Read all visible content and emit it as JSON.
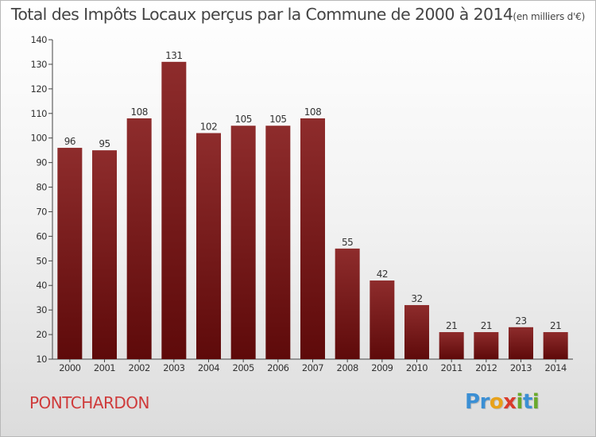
{
  "chart_data": {
    "type": "bar",
    "title": "Total des Impôts Locaux perçus par la Commune de 2000 à 2014",
    "unit_note": "(en milliers d'€)",
    "categories": [
      "2000",
      "2001",
      "2002",
      "2003",
      "2004",
      "2005",
      "2006",
      "2007",
      "2008",
      "2009",
      "2010",
      "2011",
      "2012",
      "2013",
      "2014"
    ],
    "values": [
      96,
      95,
      108,
      131,
      102,
      105,
      105,
      108,
      55,
      42,
      32,
      21,
      21,
      23,
      21
    ],
    "value_labels": [
      "96",
      "95",
      "108",
      "131",
      "102",
      "105",
      "105",
      "108",
      "55",
      "42",
      "32",
      "21",
      "21",
      "23",
      "21"
    ],
    "ylim": [
      10,
      140
    ],
    "yticks": [
      "10",
      "20",
      "30",
      "40",
      "50",
      "60",
      "70",
      "80",
      "90",
      "100",
      "110",
      "120",
      "130",
      "140"
    ],
    "grid": false,
    "bar_color": "#7a1a1a"
  },
  "footer": {
    "commune": "PONTCHARDON",
    "brand_letters": [
      {
        "ch": "P",
        "color": "#3b8fd4"
      },
      {
        "ch": "r",
        "color": "#3b8fd4"
      },
      {
        "ch": "o",
        "color": "#e8a21a"
      },
      {
        "ch": "x",
        "color": "#d93b2b"
      },
      {
        "ch": "i",
        "color": "#6aa92c"
      },
      {
        "ch": "t",
        "color": "#3b8fd4"
      },
      {
        "ch": "i",
        "color": "#6aa92c"
      }
    ]
  }
}
